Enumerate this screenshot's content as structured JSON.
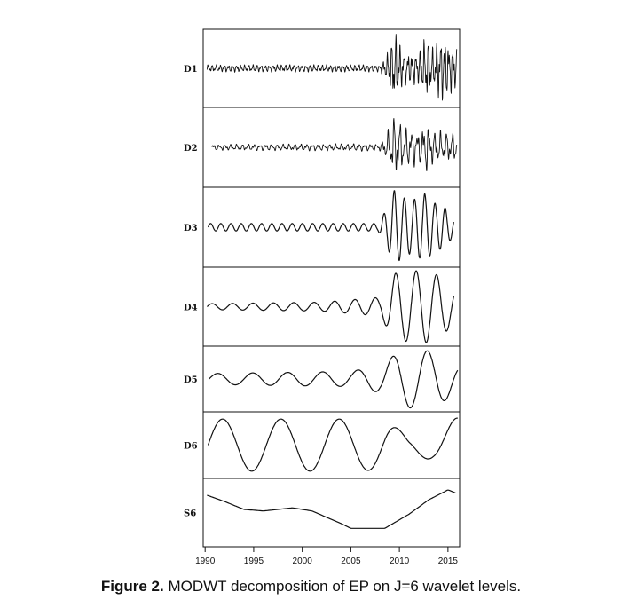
{
  "chart_data": {
    "type": "line",
    "title": "",
    "xlabel": "",
    "ylabel": "",
    "xlim": [
      1989.8,
      2016.2
    ],
    "x_ticks": [
      "1990",
      "1995",
      "2000",
      "2005",
      "2010",
      "2015"
    ],
    "x_tick_values": [
      1990,
      1995,
      2000,
      2005,
      2010,
      2015
    ],
    "line_color": "#111111",
    "panels": [
      {
        "label": "D1",
        "period": 0.42,
        "wiggle": true,
        "envelope": [
          [
            1990.2,
            0.1
          ],
          [
            2008.0,
            0.1
          ],
          [
            2008.6,
            0.3
          ],
          [
            2009.5,
            1.0
          ],
          [
            2010.5,
            0.45
          ],
          [
            2012.0,
            0.45
          ],
          [
            2012.8,
            0.95
          ],
          [
            2013.5,
            0.55
          ],
          [
            2014.2,
            0.95
          ],
          [
            2015.9,
            0.55
          ]
        ]
      },
      {
        "label": "D2",
        "period": 0.6,
        "wiggle": true,
        "envelope": [
          [
            1990.7,
            0.08
          ],
          [
            2008.0,
            0.1
          ],
          [
            2008.6,
            0.3
          ],
          [
            2009.5,
            0.9
          ],
          [
            2010.5,
            0.55
          ],
          [
            2012.2,
            0.45
          ],
          [
            2012.7,
            0.75
          ],
          [
            2013.5,
            0.45
          ],
          [
            2015.9,
            0.4
          ]
        ]
      },
      {
        "label": "D3",
        "period": 1.05,
        "wiggle": false,
        "envelope": [
          [
            1990.3,
            0.1
          ],
          [
            2007.8,
            0.1
          ],
          [
            2008.5,
            0.4
          ],
          [
            2009.5,
            1.0
          ],
          [
            2010.4,
            0.8
          ],
          [
            2011.2,
            0.7
          ],
          [
            2012.6,
            0.9
          ],
          [
            2013.6,
            0.65
          ],
          [
            2014.6,
            0.55
          ],
          [
            2015.6,
            0.25
          ]
        ]
      },
      {
        "label": "D4",
        "period": 2.1,
        "wiggle": false,
        "envelope": [
          [
            1990.2,
            0.08
          ],
          [
            2002.0,
            0.12
          ],
          [
            2008.0,
            0.25
          ],
          [
            2009.5,
            0.9
          ],
          [
            2011.0,
            0.95
          ],
          [
            2012.5,
            1.0
          ],
          [
            2014.0,
            0.85
          ],
          [
            2015.6,
            0.5
          ]
        ]
      },
      {
        "label": "D5",
        "period": 3.6,
        "wiggle": false,
        "envelope": [
          [
            1990.4,
            0.18
          ],
          [
            2005.0,
            0.25
          ],
          [
            2008.0,
            0.45
          ],
          [
            2010.0,
            0.9
          ],
          [
            2012.0,
            1.0
          ],
          [
            2014.0,
            0.85
          ],
          [
            2016.0,
            0.45
          ]
        ]
      },
      {
        "label": "D6",
        "period": 6.0,
        "wiggle": false,
        "envelope": [
          [
            1990.3,
            0.85
          ],
          [
            2005.0,
            0.85
          ],
          [
            2008.5,
            0.8
          ],
          [
            2011.0,
            0.3
          ],
          [
            2013.5,
            0.5
          ],
          [
            2016.0,
            0.9
          ]
        ]
      },
      {
        "label": "S6",
        "period": 0,
        "wiggle": false,
        "points": [
          [
            1990.2,
            0.55
          ],
          [
            1992.0,
            0.35
          ],
          [
            1994.0,
            0.1
          ],
          [
            1996.0,
            0.05
          ],
          [
            1999.0,
            0.15
          ],
          [
            2001.0,
            0.05
          ],
          [
            2004.0,
            -0.35
          ],
          [
            2005.0,
            -0.5
          ],
          [
            2008.5,
            -0.5
          ],
          [
            2011.0,
            -0.05
          ],
          [
            2013.0,
            0.4
          ],
          [
            2015.0,
            0.72
          ],
          [
            2015.8,
            0.62
          ]
        ]
      }
    ]
  },
  "caption": {
    "label": "Figure 2.",
    "text": " MODWT decomposition of EP on J=6 wavelet levels."
  }
}
